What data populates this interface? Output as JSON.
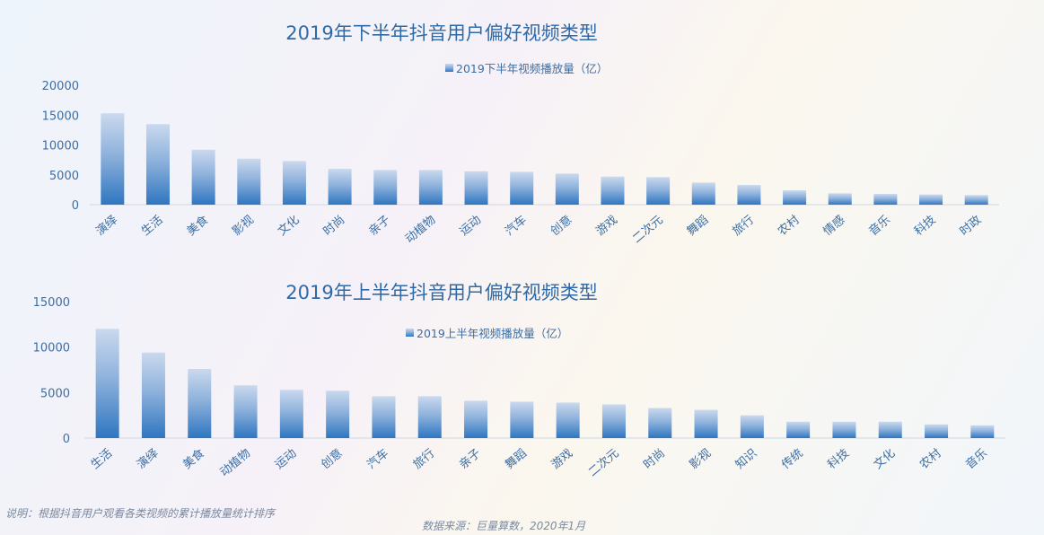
{
  "chart_data": [
    {
      "type": "bar",
      "title": "2019年下半年抖音用户偏好视频类型",
      "legend": "2019下半年视频播放量（亿）",
      "ylim": [
        0,
        20000
      ],
      "yticks": [
        0,
        5000,
        10000,
        15000,
        20000
      ],
      "categories": [
        "演绎",
        "生活",
        "美食",
        "影视",
        "文化",
        "时尚",
        "亲子",
        "动植物",
        "运动",
        "汽车",
        "创意",
        "游戏",
        "二次元",
        "舞蹈",
        "旅行",
        "农村",
        "情感",
        "音乐",
        "科技",
        "时政"
      ],
      "series": [
        {
          "name": "2019下半年视频播放量（亿）",
          "values": [
            15300,
            13500,
            9200,
            7700,
            7300,
            6000,
            5800,
            5800,
            5600,
            5500,
            5200,
            4700,
            4600,
            3700,
            3300,
            2400,
            1900,
            1800,
            1700,
            1600
          ]
        }
      ],
      "grid": false,
      "legend_position": "top-center"
    },
    {
      "type": "bar",
      "title": "2019年上半年抖音用户偏好视频类型",
      "legend": "2019上半年视频播放量（亿）",
      "ylim": [
        0,
        15000
      ],
      "yticks": [
        0,
        5000,
        10000,
        15000
      ],
      "categories": [
        "生活",
        "演绎",
        "美食",
        "动植物",
        "运动",
        "创意",
        "汽车",
        "旅行",
        "亲子",
        "舞蹈",
        "游戏",
        "二次元",
        "时尚",
        "影视",
        "知识",
        "传统",
        "科技",
        "文化",
        "农村",
        "音乐"
      ],
      "series": [
        {
          "name": "2019上半年视频播放量（亿）",
          "values": [
            12000,
            9400,
            7600,
            5800,
            5300,
            5200,
            4600,
            4600,
            4100,
            4000,
            3900,
            3700,
            3300,
            3100,
            2500,
            1800,
            1800,
            1800,
            1500,
            1400
          ]
        }
      ],
      "grid": false,
      "legend_position": "top-center"
    }
  ],
  "footer": {
    "note": "说明：根据抖音用户观看各类视频的累计播放量统计排序",
    "source": "数据来源：巨量算数，2020年1月"
  },
  "colors": {
    "bar_top": "#c9d8ee",
    "bar_bottom": "#2f76c0",
    "text": "#3b6ea4",
    "title": "#2f6aa8"
  }
}
